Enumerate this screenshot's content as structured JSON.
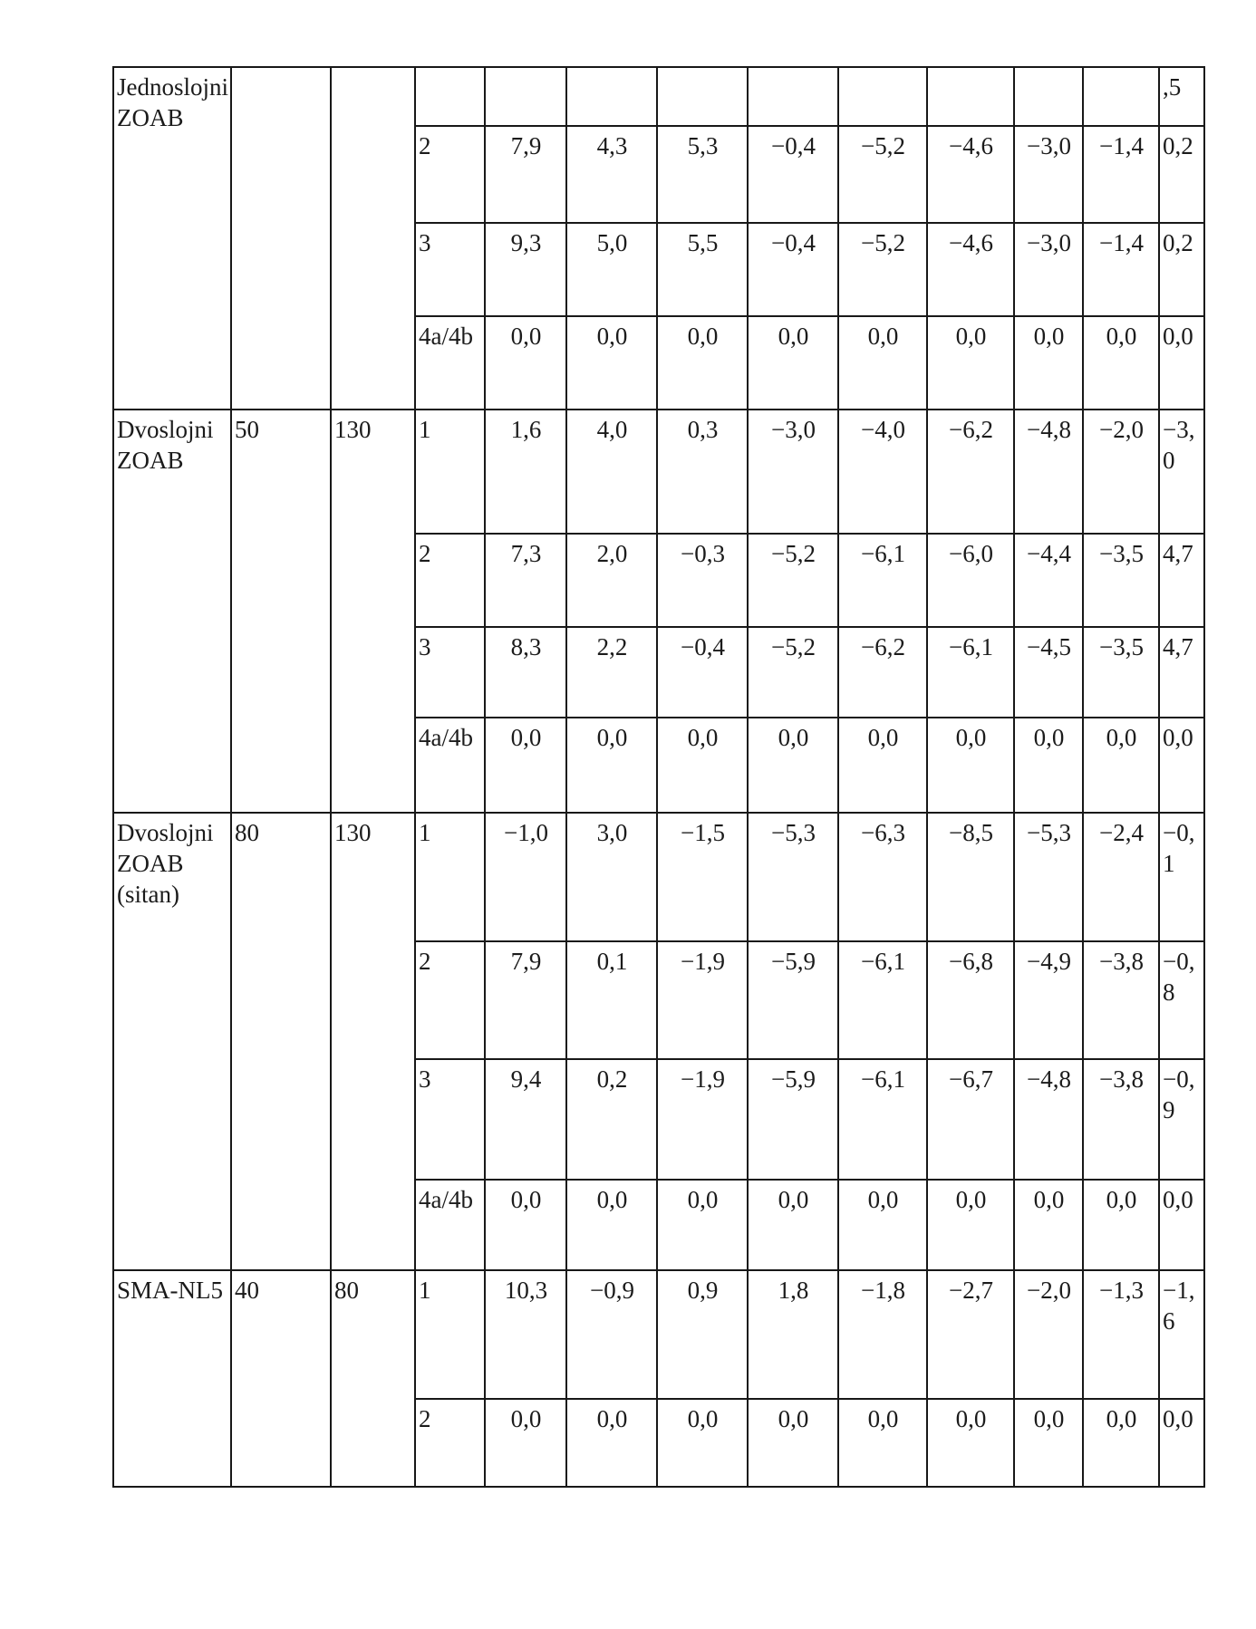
{
  "colors": {
    "background": "#ffffff",
    "ink": "#1b1b1b",
    "grid_line": "#181818"
  },
  "table": {
    "blocks": [
      {
        "label": "Jednoslojni ZOAB",
        "col2": "",
        "col3": "",
        "rows": [
          {
            "num": "",
            "values": [
              "",
              "",
              "",
              "",
              "",
              "",
              "",
              ""
            ],
            "last": ",5"
          },
          {
            "num": "2",
            "values": [
              "7,9",
              "4,3",
              "5,3",
              "−0,4",
              "−5,2",
              "−4,6",
              "−3,0",
              "−1,4"
            ],
            "last": "0,2"
          },
          {
            "num": "3",
            "values": [
              "9,3",
              "5,0",
              "5,5",
              "−0,4",
              "−5,2",
              "−4,6",
              "−3,0",
              "−1,4"
            ],
            "last": "0,2"
          },
          {
            "num": "4a/4b",
            "values": [
              "0,0",
              "0,0",
              "0,0",
              "0,0",
              "0,0",
              "0,0",
              "0,0",
              "0,0"
            ],
            "last": "0,0"
          }
        ]
      },
      {
        "label": "Dvoslojni ZOAB",
        "col2": "50",
        "col3": "130",
        "rows": [
          {
            "num": "1",
            "values": [
              "1,6",
              "4,0",
              "0,3",
              "−3,0",
              "−4,0",
              "−6,2",
              "−4,8",
              "−2,0"
            ],
            "last": "−3,0"
          },
          {
            "num": "2",
            "values": [
              "7,3",
              "2,0",
              "−0,3",
              "−5,2",
              "−6,1",
              "−6,0",
              "−4,4",
              "−3,5"
            ],
            "last": "4,7"
          },
          {
            "num": "3",
            "values": [
              "8,3",
              "2,2",
              "−0,4",
              "−5,2",
              "−6,2",
              "−6,1",
              "−4,5",
              "−3,5"
            ],
            "last": "4,7"
          },
          {
            "num": "4a/4b",
            "values": [
              "0,0",
              "0,0",
              "0,0",
              "0,0",
              "0,0",
              "0,0",
              "0,0",
              "0,0"
            ],
            "last": "0,0"
          }
        ]
      },
      {
        "label": "Dvoslojni ZOAB (sitan)",
        "col2": "80",
        "col3": "130",
        "rows": [
          {
            "num": "1",
            "values": [
              "−1,0",
              "3,0",
              "−1,5",
              "−5,3",
              "−6,3",
              "−8,5",
              "−5,3",
              "−2,4"
            ],
            "last": "−0,1"
          },
          {
            "num": "2",
            "values": [
              "7,9",
              "0,1",
              "−1,9",
              "−5,9",
              "−6,1",
              "−6,8",
              "−4,9",
              "−3,8"
            ],
            "last": "−0,8"
          },
          {
            "num": "3",
            "values": [
              "9,4",
              "0,2",
              "−1,9",
              "−5,9",
              "−6,1",
              "−6,7",
              "−4,8",
              "−3,8"
            ],
            "last": "−0,9"
          },
          {
            "num": "4a/4b",
            "values": [
              "0,0",
              "0,0",
              "0,0",
              "0,0",
              "0,0",
              "0,0",
              "0,0",
              "0,0"
            ],
            "last": "0,0"
          }
        ]
      },
      {
        "label": "SMA-NL5",
        "col2": "40",
        "col3": "80",
        "rows": [
          {
            "num": "1",
            "values": [
              "10,3",
              "−0,9",
              "0,9",
              "1,8",
              "−1,8",
              "−2,7",
              "−2,0",
              "−1,3"
            ],
            "last": "−1,6"
          },
          {
            "num": "2",
            "values": [
              "0,0",
              "0,0",
              "0,0",
              "0,0",
              "0,0",
              "0,0",
              "0,0",
              "0,0"
            ],
            "last": "0,0"
          }
        ]
      }
    ]
  }
}
